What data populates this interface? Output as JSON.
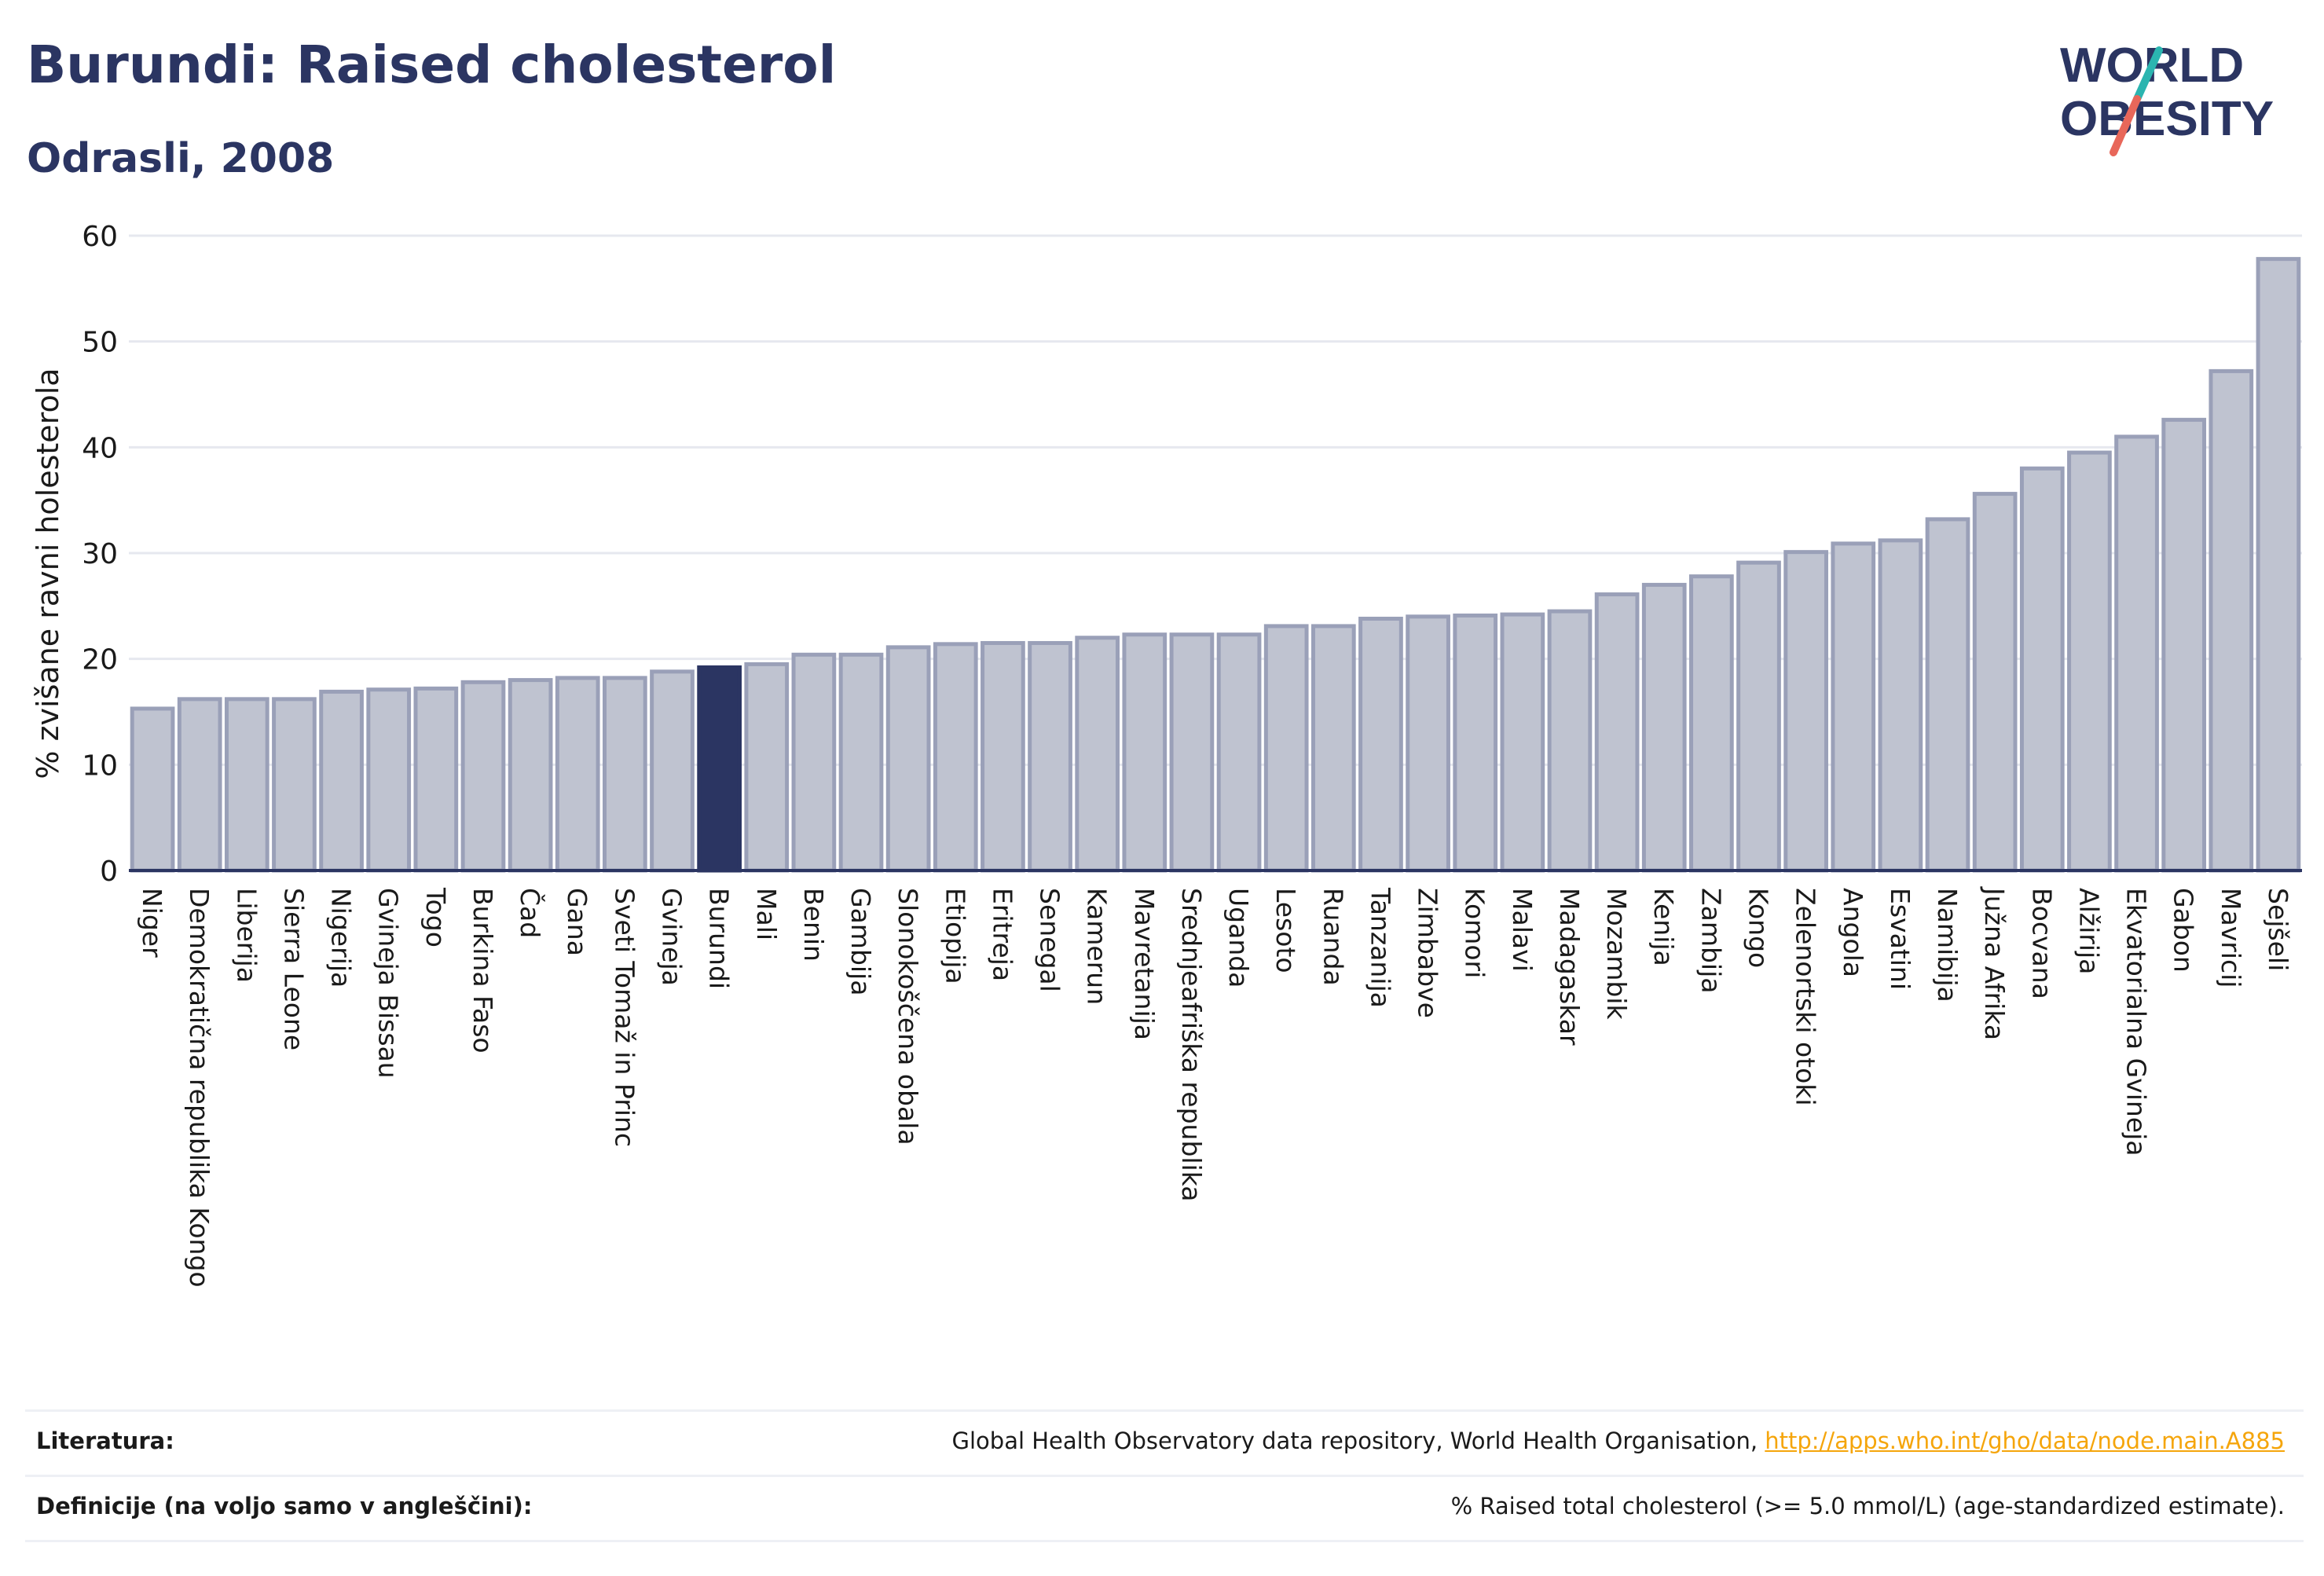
{
  "header": {
    "title": "Burundi: Raised cholesterol",
    "subtitle": "Odrasli, 2008"
  },
  "logo": {
    "line1": "WORLD",
    "line2": "OBESITY"
  },
  "chart_data": {
    "type": "bar",
    "ylabel": "% zvišane ravni holesterola",
    "ylim": [
      0,
      60
    ],
    "yticks": [
      0,
      10,
      20,
      30,
      40,
      50,
      60
    ],
    "grid": true,
    "highlight": "Burundi",
    "categories": [
      "Niger",
      "Demokratična republika Kongo",
      "Liberija",
      "Sierra Leone",
      "Nigerija",
      "Gvineja Bissau",
      "Togo",
      "Burkina Faso",
      "Čad",
      "Gana",
      "Sveti Tomaž in Princ",
      "Gvineja",
      "Burundi",
      "Mali",
      "Benin",
      "Gambija",
      "Slonokoščena obala",
      "Etiopija",
      "Eritreja",
      "Senegal",
      "Kamerun",
      "Mavretanija",
      "Srednjeafriška republika",
      "Uganda",
      "Lesoto",
      "Ruanda",
      "Tanzanija",
      "Zimbabve",
      "Komori",
      "Malavi",
      "Madagaskar",
      "Mozambik",
      "Kenija",
      "Zambija",
      "Kongo",
      "Zelenortski otoki",
      "Angola",
      "Esvatini",
      "Namibija",
      "Južna Afrika",
      "Bocvana",
      "Alžirija",
      "Ekvatorialna Gvineja",
      "Gabon",
      "Mavricij",
      "Sejšeli"
    ],
    "values": [
      15.3,
      16.2,
      16.2,
      16.2,
      16.9,
      17.1,
      17.2,
      17.8,
      18.0,
      18.2,
      18.2,
      18.8,
      19.2,
      19.5,
      20.4,
      20.4,
      21.1,
      21.4,
      21.5,
      21.5,
      22.0,
      22.3,
      22.3,
      22.3,
      23.1,
      23.1,
      23.8,
      24.0,
      24.1,
      24.2,
      24.5,
      26.1,
      27.0,
      27.8,
      29.1,
      30.1,
      30.9,
      31.2,
      33.2,
      35.6,
      38.0,
      39.5,
      41.0,
      42.6,
      47.2,
      57.8
    ],
    "colors": {
      "bar": "#bfc3d0",
      "bar_edge": "#9aa0b8",
      "highlight": "#2b3562",
      "axis": "#2b3562",
      "grid": "#e6e8ef"
    }
  },
  "footer": {
    "sources_label": "Literatura:",
    "sources_text": "Global Health Observatory data repository, World Health Organisation, ",
    "sources_link": "http://apps.who.int/gho/data/node.main.A885",
    "definitions_label": "Definicije (na voljo samo v angleščini):",
    "definitions_text": "% Raised total cholesterol (>= 5.0 mmol/L) (age-standardized estimate)."
  }
}
